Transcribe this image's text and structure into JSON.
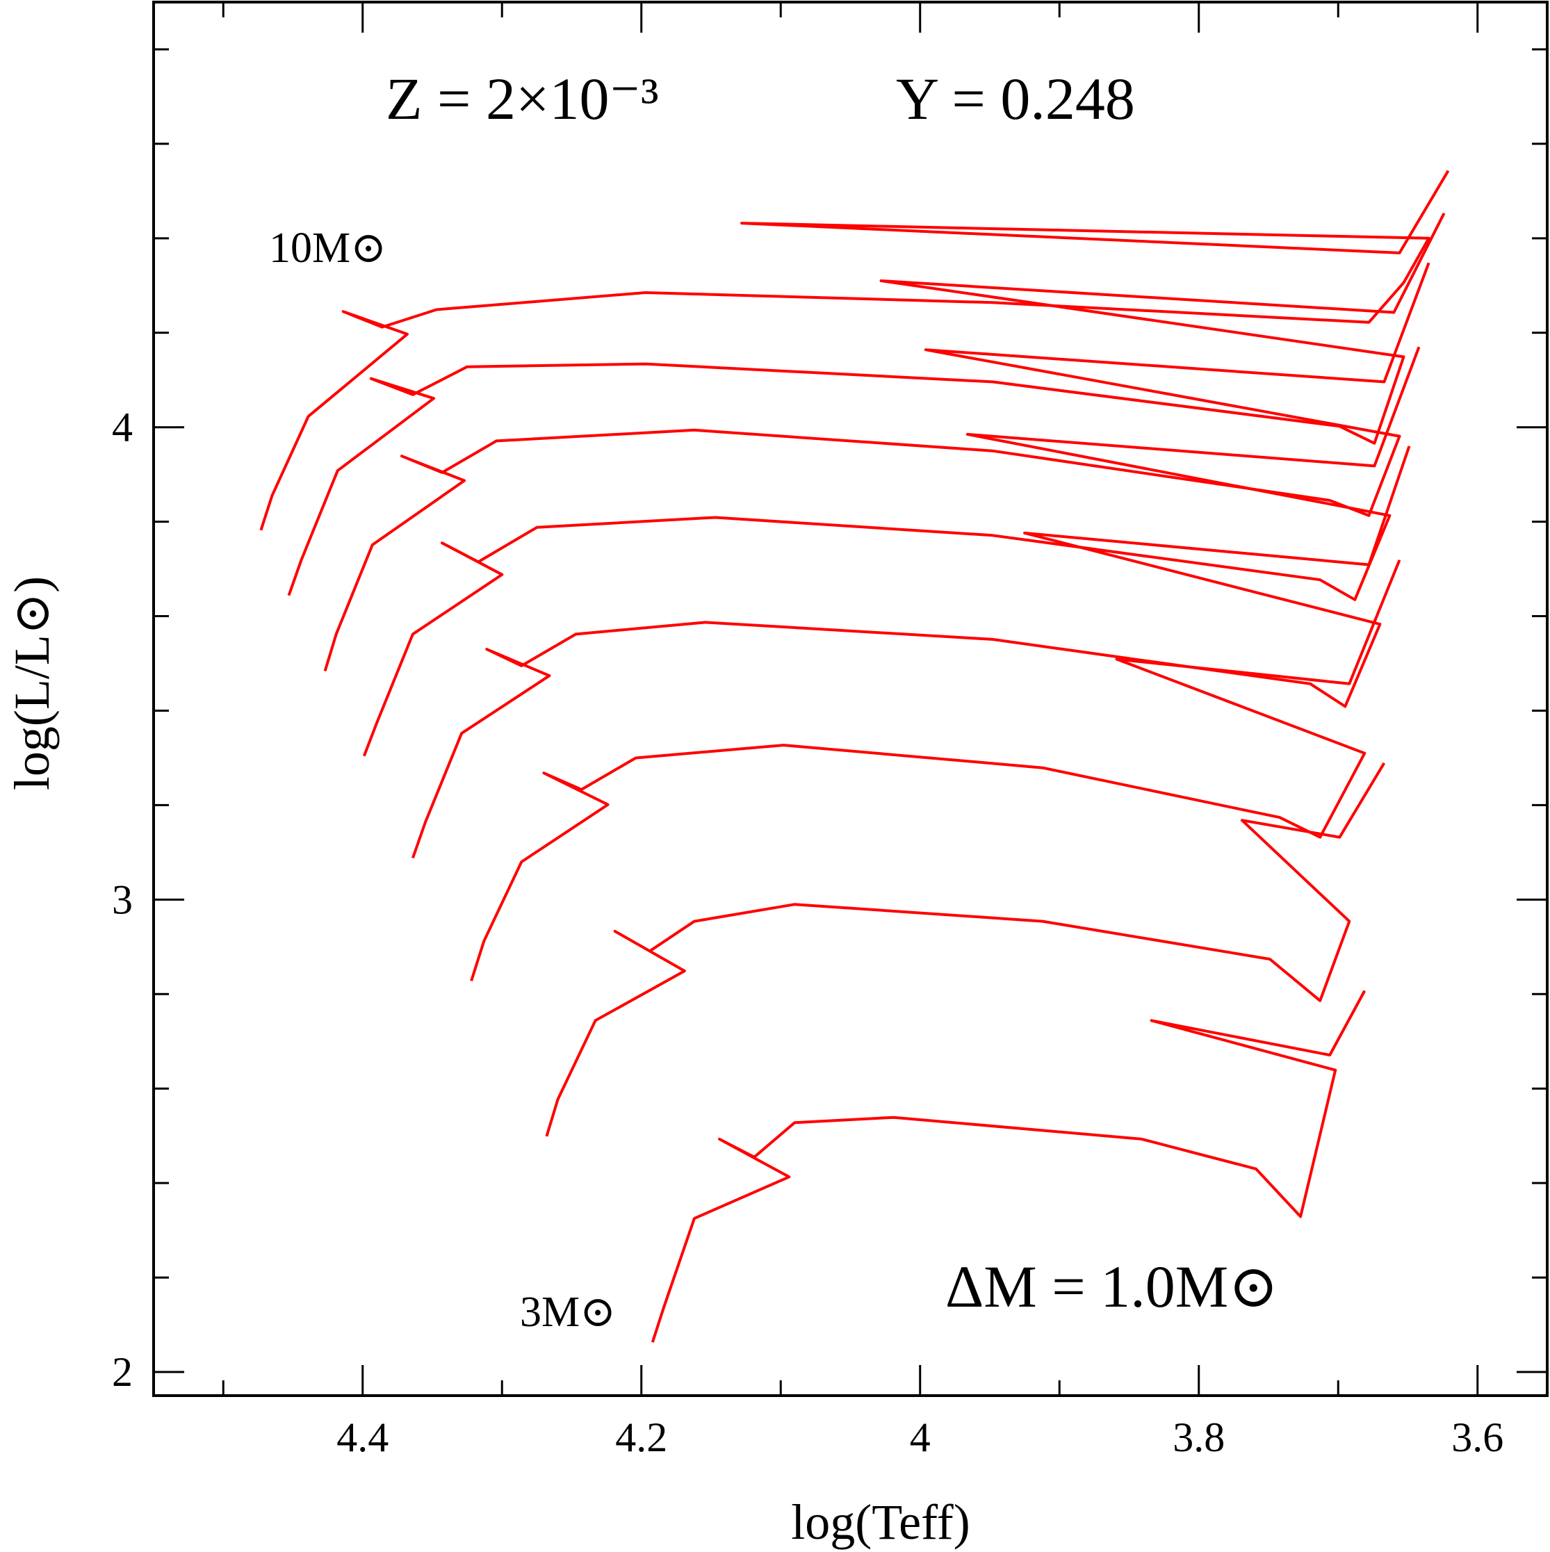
{
  "chart_data": {
    "type": "line",
    "annotations": [
      "Z = 2×10⁻³",
      "Y = 0.248",
      "10M⊙",
      "3M⊙",
      "ΔM = 1.0M⊙"
    ],
    "xlabel": "log(Teff)",
    "ylabel": "log(L/L⊙)",
    "xlim": [
      4.55,
      3.55
    ],
    "ylim": [
      1.95,
      4.9
    ],
    "xticks": [
      4.4,
      4.2,
      4,
      3.8,
      3.6
    ],
    "xminorticks": [
      4.5,
      4.3,
      4.1,
      3.9,
      3.7
    ],
    "yticks": [
      2,
      3,
      4
    ],
    "yminorticks": [
      2.2,
      2.4,
      2.6,
      2.8,
      3.2,
      3.4,
      3.6,
      3.8,
      4.2,
      4.4,
      4.6,
      4.8
    ],
    "color": "#ff0000",
    "series": [
      {
        "x": [
          4.192,
          4.184,
          4.162,
          4.094,
          4.144,
          4.119,
          4.09,
          4.019,
          3.841,
          3.759,
          3.727,
          3.702,
          3.834,
          3.706,
          3.681
        ],
        "values": [
          2.063,
          2.136,
          2.325,
          2.413,
          2.493,
          2.455,
          2.528,
          2.539,
          2.493,
          2.43,
          2.329,
          2.639,
          2.744,
          2.671,
          2.807
        ]
      },
      {
        "x": [
          4.268,
          4.26,
          4.233,
          4.169,
          4.219,
          4.194,
          4.162,
          4.09,
          3.912,
          3.749,
          3.713,
          3.692,
          3.769,
          3.699,
          3.667
        ],
        "values": [
          2.499,
          2.577,
          2.744,
          2.849,
          2.933,
          2.891,
          2.954,
          2.99,
          2.954,
          2.874,
          2.786,
          2.954,
          3.168,
          3.132,
          3.289
        ]
      },
      {
        "x": [
          4.322,
          4.313,
          4.286,
          4.224,
          4.27,
          4.243,
          4.204,
          4.098,
          3.912,
          3.742,
          3.713,
          3.681,
          3.859,
          3.692,
          3.656
        ],
        "values": [
          2.828,
          2.912,
          3.08,
          3.201,
          3.268,
          3.233,
          3.3,
          3.327,
          3.279,
          3.174,
          3.132,
          3.31,
          3.509,
          3.457,
          3.719
        ]
      },
      {
        "x": [
          4.364,
          4.355,
          4.329,
          4.266,
          4.311,
          4.286,
          4.247,
          4.154,
          3.948,
          3.72,
          3.695,
          3.67,
          3.925,
          3.678,
          3.649
        ],
        "values": [
          3.088,
          3.164,
          3.352,
          3.474,
          3.53,
          3.495,
          3.562,
          3.587,
          3.551,
          3.457,
          3.409,
          3.583,
          3.776,
          3.709,
          3.96
        ]
      },
      {
        "x": [
          4.399,
          4.39,
          4.364,
          4.3,
          4.343,
          4.317,
          4.275,
          4.147,
          3.948,
          3.713,
          3.688,
          3.663,
          3.966,
          3.674,
          3.642
        ],
        "values": [
          3.304,
          3.373,
          3.562,
          3.688,
          3.755,
          3.715,
          3.788,
          3.809,
          3.771,
          3.677,
          3.635,
          3.813,
          3.985,
          3.918,
          4.17
        ]
      },
      {
        "x": [
          4.427,
          4.419,
          4.393,
          4.327,
          4.372,
          4.343,
          4.304,
          4.162,
          3.948,
          3.706,
          3.678,
          3.656,
          3.996,
          3.667,
          3.635
        ],
        "values": [
          3.484,
          3.562,
          3.751,
          3.887,
          3.939,
          3.904,
          3.971,
          3.994,
          3.95,
          3.845,
          3.813,
          3.981,
          4.164,
          4.096,
          4.348
        ]
      },
      {
        "x": [
          4.453,
          4.444,
          4.418,
          4.349,
          4.394,
          4.364,
          4.325,
          4.197,
          3.948,
          3.699,
          3.674,
          3.653,
          4.028,
          3.66,
          3.624
        ],
        "values": [
          3.644,
          3.719,
          3.908,
          4.061,
          4.103,
          4.069,
          4.128,
          4.134,
          4.096,
          4.002,
          3.966,
          4.149,
          4.31,
          4.243,
          4.453
        ]
      },
      {
        "x": [
          4.473,
          4.465,
          4.439,
          4.368,
          4.414,
          4.386,
          4.347,
          4.197,
          3.948,
          3.678,
          3.653,
          3.635,
          4.128,
          3.656,
          3.621
        ],
        "values": [
          3.782,
          3.855,
          4.023,
          4.197,
          4.245,
          4.212,
          4.249,
          4.285,
          4.264,
          4.222,
          4.306,
          4.4,
          4.432,
          4.369,
          4.543
        ]
      }
    ]
  }
}
